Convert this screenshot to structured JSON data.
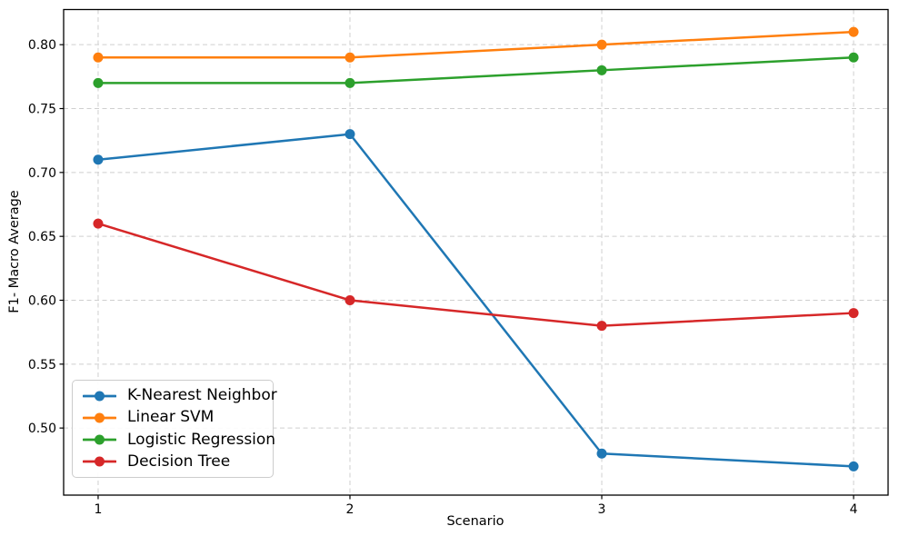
{
  "chart_data": {
    "type": "line",
    "title": "",
    "xlabel": "Scenario",
    "ylabel": "F1- Macro Average",
    "x": [
      1,
      2,
      3,
      4
    ],
    "xtick_labels": [
      "1",
      "2",
      "3",
      "4"
    ],
    "ytick_values": [
      0.5,
      0.55,
      0.6,
      0.65,
      0.7,
      0.75,
      0.8
    ],
    "ytick_labels": [
      "0.50",
      "0.55",
      "0.60",
      "0.65",
      "0.70",
      "0.75",
      "0.80"
    ],
    "xlim": [
      0.863,
      4.137
    ],
    "ylim": [
      0.4475,
      0.8275
    ],
    "grid": true,
    "grid_style": "dashed",
    "grid_color": "#cfcfcf",
    "axis_color": "#000000",
    "background": "#ffffff",
    "marker": "circle",
    "legend_position": "lower-left",
    "series": [
      {
        "name": "K-Nearest Neighbor",
        "color": "#1f77b4",
        "values": [
          0.71,
          0.73,
          0.48,
          0.47
        ]
      },
      {
        "name": "Linear SVM",
        "color": "#ff7f0e",
        "values": [
          0.79,
          0.79,
          0.8,
          0.81
        ]
      },
      {
        "name": "Logistic Regression",
        "color": "#2ca02c",
        "values": [
          0.77,
          0.77,
          0.78,
          0.79
        ]
      },
      {
        "name": "Decision Tree",
        "color": "#d62728",
        "values": [
          0.66,
          0.6,
          0.58,
          0.59
        ]
      }
    ]
  }
}
